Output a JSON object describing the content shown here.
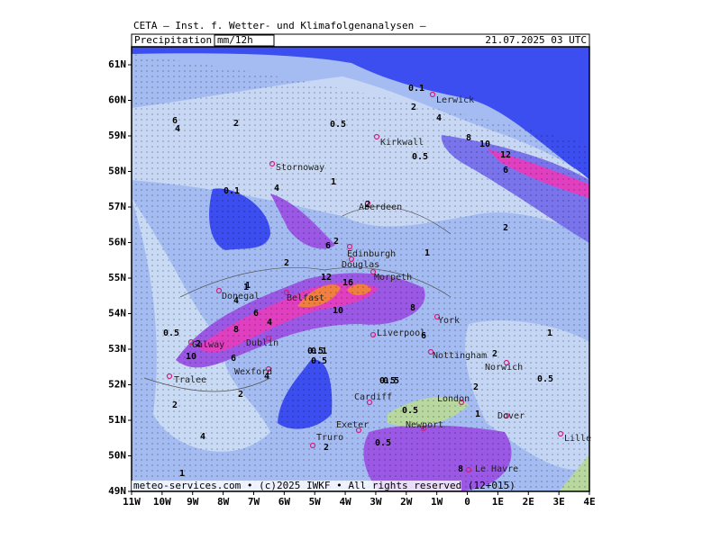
{
  "header": {
    "title": "CETA – Inst. f. Wetter- und Klimafolgenanalysen –"
  },
  "panel": {
    "variable": "Precipitation",
    "unit": "mm/12h",
    "valid": "21.07.2025 03 UTC"
  },
  "footer": "meteo-services.com • (c)2025 IWKF • All rights reserved (12+015)",
  "axes": {
    "lat": [
      "61N",
      "60N",
      "59N",
      "58N",
      "57N",
      "56N",
      "55N",
      "54N",
      "53N",
      "52N",
      "51N",
      "50N",
      "49N"
    ],
    "lon": [
      "11W",
      "10W",
      "9W",
      "8W",
      "7W",
      "6W",
      "5W",
      "4W",
      "3W",
      "2W",
      "1W",
      "0",
      "1E",
      "2E",
      "3E",
      "4E"
    ]
  },
  "cities": [
    "Lerwick",
    "Kirkwall",
    "Stornoway",
    "Aberdeen",
    "Edinburgh",
    "Douglas",
    "Morpeth",
    "Belfast",
    "Donegal",
    "York",
    "Dublin",
    "Liverpool",
    "Galway",
    "Nottingham",
    "Norwich",
    "Tralee",
    "Wexford",
    "London",
    "Cardiff",
    "Dover",
    "Lille",
    "Exeter",
    "Newport",
    "Truro",
    "Le Havre"
  ],
  "contour_labels": [
    "0.1",
    "2",
    "4",
    "6",
    "2",
    "0.5",
    "8",
    "10",
    "12",
    "6",
    "0.5",
    "0.1",
    "4",
    "1",
    "2",
    "2",
    "6",
    "2",
    "1",
    "16",
    "12",
    "10",
    "8",
    "6",
    "4",
    "2",
    "1",
    "0.5",
    "10",
    "8",
    "6",
    "4",
    "0.5",
    "2",
    "4",
    "2",
    "0.5",
    "0.5",
    "0.1",
    "2",
    "0.5",
    "2",
    "4",
    "0.5",
    "2",
    "1",
    "0.5",
    "8",
    "1",
    "2",
    "4",
    "1",
    "0.5",
    "6",
    "1"
  ]
}
